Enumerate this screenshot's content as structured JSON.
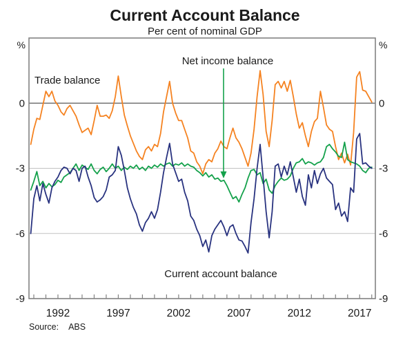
{
  "page": {
    "title": "Current Account Balance",
    "subtitle": "Per cent of nominal GDP",
    "source_label": "Source:",
    "source_value": "ABS"
  },
  "axis": {
    "percent_left": "%",
    "percent_right": "%",
    "y_ticks": [
      {
        "value": 0,
        "label": "0"
      },
      {
        "value": -3,
        "label": "-3"
      },
      {
        "value": -6,
        "label": "-6"
      },
      {
        "value": -9,
        "label": "-9"
      }
    ],
    "x_labeled_years": [
      1992,
      1997,
      2002,
      2007,
      2012,
      2017
    ],
    "x_tick_year_first": 1990,
    "x_tick_year_last": 2018
  },
  "annotations": {
    "trade": "Trade balance",
    "net_income": "Net income balance",
    "current_account": "Current account balance"
  },
  "colors": {
    "trade": "#f58220",
    "net_income": "#14a14b",
    "current_account": "#28327f",
    "zero_line": "#5a5a5a",
    "grid": "#c2c2c2",
    "frame": "#828282",
    "text": "#1a1a1a"
  },
  "chart_data": {
    "type": "line",
    "title": "Current Account Balance",
    "subtitle": "Per cent of nominal GDP",
    "x_unit": "year (quarterly observations)",
    "ylabel": "% of nominal GDP",
    "x_start": 1989.75,
    "x_step": 0.25,
    "x_range": [
      1989.6,
      2018.3
    ],
    "y_range": [
      -9,
      3
    ],
    "y_gridlines_light": [
      -3,
      -6
    ],
    "y_zero_line": 0,
    "grid": "on",
    "legend_position": "inline-annotations",
    "series": [
      {
        "name": "Trade balance",
        "color_key": "trade",
        "values": [
          -1.9,
          -1.2,
          -0.7,
          -0.75,
          -0.1,
          0.55,
          0.3,
          0.55,
          0.1,
          -0.1,
          -0.4,
          -0.55,
          -0.25,
          -0.1,
          -0.35,
          -0.6,
          -1.0,
          -1.35,
          -1.25,
          -1.15,
          -1.45,
          -0.8,
          -0.1,
          -0.6,
          -0.6,
          -0.55,
          -0.7,
          -0.35,
          0.3,
          1.25,
          0.3,
          -0.55,
          -1.05,
          -1.5,
          -1.85,
          -2.2,
          -2.45,
          -2.6,
          -2.15,
          -2.0,
          -2.2,
          -1.9,
          -2.0,
          -1.4,
          -0.4,
          0.3,
          1.0,
          0.0,
          -0.45,
          -0.8,
          -0.8,
          -1.2,
          -1.6,
          -2.2,
          -2.3,
          -2.7,
          -2.9,
          -3.25,
          -2.8,
          -2.6,
          -2.7,
          -2.3,
          -2.1,
          -1.75,
          -2.0,
          -2.1,
          -1.6,
          -1.15,
          -1.6,
          -1.8,
          -2.1,
          -2.5,
          -2.9,
          -2.3,
          -1.2,
          0.3,
          1.5,
          0.4,
          -1.3,
          -2.0,
          -0.8,
          0.85,
          1.0,
          0.7,
          1.0,
          0.55,
          1.05,
          0.3,
          -0.5,
          -1.15,
          -0.9,
          -1.5,
          -2.0,
          -1.3,
          -0.85,
          -0.7,
          0.55,
          -0.2,
          -1.0,
          -1.2,
          -1.3,
          -2.0,
          -2.6,
          -2.3,
          -2.75,
          -2.35,
          -2.85,
          -1.35,
          1.2,
          1.45,
          0.6,
          0.55,
          0.3,
          0.05
        ]
      },
      {
        "name": "Net income balance",
        "color_key": "net_income",
        "values": [
          -4.0,
          -3.6,
          -3.15,
          -3.8,
          -3.6,
          -3.9,
          -3.7,
          -3.85,
          -3.75,
          -3.55,
          -3.65,
          -3.4,
          -3.3,
          -3.2,
          -3.0,
          -2.8,
          -3.1,
          -2.85,
          -2.95,
          -3.05,
          -2.8,
          -3.1,
          -3.25,
          -3.05,
          -2.95,
          -3.15,
          -3.0,
          -2.8,
          -3.0,
          -2.9,
          -3.1,
          -2.95,
          -3.05,
          -2.9,
          -3.0,
          -2.85,
          -3.05,
          -2.95,
          -3.1,
          -2.9,
          -3.0,
          -2.85,
          -2.95,
          -2.8,
          -2.9,
          -2.8,
          -2.75,
          -2.9,
          -2.8,
          -2.85,
          -2.75,
          -2.9,
          -2.8,
          -2.9,
          -2.95,
          -3.1,
          -3.2,
          -3.35,
          -3.2,
          -3.4,
          -3.3,
          -3.5,
          -3.45,
          -3.6,
          -3.55,
          -3.8,
          -4.1,
          -4.4,
          -4.3,
          -4.55,
          -4.2,
          -3.9,
          -3.45,
          -3.1,
          -3.05,
          -3.3,
          -3.2,
          -3.7,
          -3.5,
          -4.0,
          -4.15,
          -3.8,
          -3.6,
          -3.45,
          -3.55,
          -3.5,
          -3.35,
          -3.0,
          -2.75,
          -2.7,
          -2.55,
          -2.8,
          -2.7,
          -2.75,
          -2.85,
          -2.75,
          -2.7,
          -2.5,
          -2.0,
          -1.9,
          -2.1,
          -2.25,
          -2.45,
          -2.5,
          -1.8,
          -2.6,
          -2.7,
          -2.75,
          -2.8,
          -2.9,
          -3.1,
          -3.2,
          -3.0,
          -2.95
        ]
      },
      {
        "name": "Current account balance",
        "color_key": "current_account",
        "values": [
          -6.0,
          -4.4,
          -3.8,
          -4.5,
          -3.7,
          -4.2,
          -4.6,
          -3.9,
          -3.6,
          -3.4,
          -3.1,
          -2.95,
          -3.0,
          -3.25,
          -3.0,
          -3.1,
          -3.6,
          -3.0,
          -2.9,
          -3.4,
          -3.8,
          -4.35,
          -4.55,
          -4.45,
          -4.3,
          -4.0,
          -3.4,
          -3.3,
          -3.1,
          -2.0,
          -2.4,
          -3.1,
          -3.9,
          -4.4,
          -4.8,
          -5.1,
          -5.6,
          -5.9,
          -5.5,
          -5.3,
          -5.0,
          -5.3,
          -4.9,
          -4.1,
          -3.2,
          -2.5,
          -1.85,
          -2.8,
          -3.2,
          -3.6,
          -3.5,
          -4.1,
          -4.5,
          -5.2,
          -5.4,
          -5.8,
          -6.1,
          -6.6,
          -6.3,
          -6.85,
          -6.1,
          -5.8,
          -5.6,
          -5.4,
          -5.7,
          -6.1,
          -5.7,
          -5.6,
          -6.0,
          -6.3,
          -6.35,
          -6.6,
          -6.9,
          -5.5,
          -4.4,
          -3.0,
          -1.9,
          -3.4,
          -5.0,
          -6.2,
          -5.0,
          -2.9,
          -2.8,
          -3.4,
          -2.9,
          -3.3,
          -2.7,
          -3.4,
          -4.1,
          -3.5,
          -4.3,
          -4.7,
          -3.3,
          -3.9,
          -3.1,
          -3.7,
          -3.25,
          -3.0,
          -3.45,
          -3.6,
          -3.75,
          -4.9,
          -4.6,
          -5.2,
          -5.0,
          -5.45,
          -3.9,
          -4.1,
          -1.65,
          -1.4,
          -2.8,
          -2.75,
          -2.9,
          -3.0
        ]
      }
    ]
  }
}
